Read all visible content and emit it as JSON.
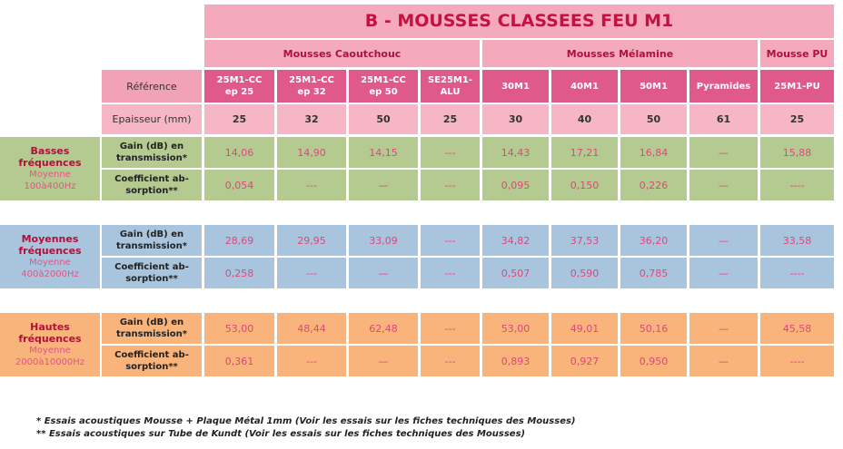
{
  "title": "B - MOUSSES CLASSEES FEU M1",
  "groups": [
    "Mousses Caoutchouc",
    "Mousses Mélamine",
    "Mousse PU"
  ],
  "reference_label": "Référence",
  "references": [
    "25M1-CC ep 25",
    "25M1-CC ep 32",
    "25M1-CC ep 50",
    "SE25M1-ALU",
    "30M1",
    "40M1",
    "50M1",
    "Pyramides",
    "25M1-PU"
  ],
  "thickness_label": "Epaisseur (mm)",
  "thicknesses": [
    "25",
    "32",
    "50",
    "25",
    "30",
    "40",
    "50",
    "61",
    "25"
  ],
  "bands": [
    {
      "name": "Basses fréquences",
      "sub": "Moyenne",
      "range": "100à400Hz",
      "rows": [
        {
          "label": "Gain (dB) en transmission*",
          "values": [
            "14,06",
            "14,90",
            "14,15",
            "---",
            "14,43",
            "17,21",
            "16,84",
            "—",
            "15,88"
          ]
        },
        {
          "label": "Coefficient ab-sorption**",
          "values": [
            "0,054",
            "---",
            "—",
            "---",
            "0,095",
            "0,150",
            "0,226",
            "—",
            "----"
          ]
        }
      ]
    },
    {
      "name": "Moyennes fréquences",
      "sub": "Moyenne",
      "range": "400à2000Hz",
      "rows": [
        {
          "label": "Gain (dB) en transmission*",
          "values": [
            "28,69",
            "29,95",
            "33,09",
            "---",
            "34,82",
            "37,53",
            "36,20",
            "—",
            "33,58"
          ]
        },
        {
          "label": "Coefficient ab-sorption**",
          "values": [
            "0,258",
            "---",
            "—",
            "---",
            "0,507",
            "0,590",
            "0,785",
            "—",
            "----"
          ]
        }
      ]
    },
    {
      "name": "Hautes fréquences",
      "sub": "Moyenne",
      "range": "2000à10000Hz",
      "rows": [
        {
          "label": "Gain (dB) en transmission*",
          "values": [
            "53,00",
            "48,44",
            "62,48",
            "---",
            "53,00",
            "49,01",
            "50,16",
            "—",
            "45,58"
          ]
        },
        {
          "label": "Coefficient ab-sorption**",
          "values": [
            "0,361",
            "---",
            "—",
            "---",
            "0,893",
            "0,927",
            "0,950",
            "—",
            "----"
          ]
        }
      ]
    }
  ],
  "footnotes": [
    "*  Essais acoustiques Mousse + Plaque Métal 1mm (Voir les essais sur les fiches techniques des Mousses)",
    "** Essais acoustiques sur Tube de Kundt (Voir les essais sur les fiches techniques des Mousses)"
  ]
}
